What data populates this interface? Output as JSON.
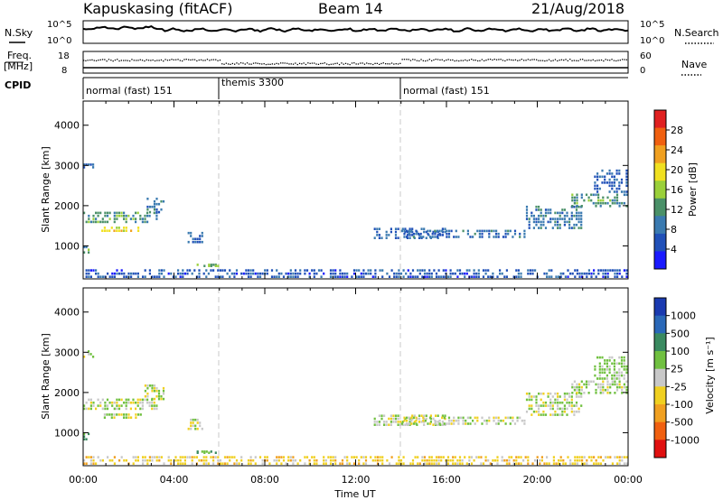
{
  "header": {
    "station": "Kapuskasing (fitACF)",
    "beam": "Beam 14",
    "date": "21/Aug/2018"
  },
  "summary": {
    "nsky_label": "N.Sky",
    "nsearch_label": "N.Search",
    "freq_label_1": "Freq.",
    "freq_label_2": "[MHz]",
    "nave_label": "Nave",
    "cpid_label": "CPID",
    "nsky_ticks": [
      "10^5",
      "10^0"
    ],
    "nsearch_ticks": [
      "10^5",
      "10^0"
    ],
    "freq_ticks": [
      "18",
      "8"
    ],
    "nave_ticks": [
      "60",
      "0"
    ],
    "cpid_segments": [
      {
        "label": "normal (fast) 151",
        "start_hour": 0,
        "end_hour": 6
      },
      {
        "label": "themis 3300",
        "start_hour": 6,
        "end_hour": 14
      },
      {
        "label": "normal (fast) 151",
        "start_hour": 14,
        "end_hour": 24
      }
    ]
  },
  "axes": {
    "x_label": "Time UT",
    "x_ticks": [
      "00:00",
      "04:00",
      "08:00",
      "12:00",
      "16:00",
      "20:00",
      "00:00"
    ],
    "y_label": "Slant Range [km]",
    "y_ticks": [
      "1000",
      "2000",
      "3000",
      "4000"
    ]
  },
  "colorbars": {
    "power": {
      "label": "Power [dB]",
      "ticks": [
        "4",
        "8",
        "12",
        "16",
        "20",
        "24",
        "28"
      ],
      "colors": [
        "#1a1aff",
        "#2050b8",
        "#3a7ab0",
        "#4a9068",
        "#9ad03a",
        "#f0e020",
        "#f0a020",
        "#f06010",
        "#e02020"
      ]
    },
    "velocity": {
      "label": "Velocity [m s⁻¹]",
      "ticks": [
        "1000",
        "500",
        "100",
        "25",
        "-25",
        "-100",
        "-500",
        "-1000"
      ],
      "colors": [
        "#1a3ab0",
        "#2a68b8",
        "#3a8a60",
        "#70c040",
        "#c8c8c8",
        "#f0d020",
        "#f0a020",
        "#f06010",
        "#e01010"
      ]
    }
  },
  "chart_data": {
    "type": "heatmap",
    "title": "Kapuskasing (fitACF)",
    "xlabel": "Time UT",
    "ylabel": "Slant Range [km]",
    "xlim": [
      0,
      24
    ],
    "ylim": [
      180,
      4600
    ],
    "series": [
      {
        "name": "Power [dB]",
        "clim": [
          0,
          32
        ]
      },
      {
        "name": "Velocity [m s⁻¹]",
        "clim": [
          -1200,
          1200
        ]
      }
    ],
    "regions": [
      {
        "t0": 0.0,
        "t1": 0.5,
        "r0": 2850,
        "r1": 3050,
        "power": 7,
        "velocity": 30
      },
      {
        "t0": 0.0,
        "t1": 3.3,
        "r0": 1550,
        "r1": 1850,
        "power": 12,
        "velocity": 5
      },
      {
        "t0": 0.8,
        "t1": 2.6,
        "r0": 1330,
        "r1": 1480,
        "power": 20,
        "velocity": 5
      },
      {
        "t0": 2.7,
        "t1": 3.6,
        "r0": 1800,
        "r1": 2200,
        "power": 9,
        "velocity": 10
      },
      {
        "t0": 0.0,
        "t1": 0.3,
        "r0": 800,
        "r1": 1000,
        "power": 12,
        "velocity": 150
      },
      {
        "t0": 4.6,
        "t1": 5.3,
        "r0": 1050,
        "r1": 1350,
        "power": 7,
        "velocity": 5
      },
      {
        "t0": 5.0,
        "t1": 6.0,
        "r0": 500,
        "r1": 560,
        "power": 15,
        "velocity": 120
      },
      {
        "t0": 12.8,
        "t1": 16.0,
        "r0": 1150,
        "r1": 1450,
        "power": 7,
        "velocity": 5
      },
      {
        "t0": 14.0,
        "t1": 19.5,
        "r0": 1180,
        "r1": 1400,
        "power": 8,
        "velocity": 5
      },
      {
        "t0": 19.5,
        "t1": 22.0,
        "r0": 1400,
        "r1": 2000,
        "power": 9,
        "velocity": 10
      },
      {
        "t0": 21.5,
        "t1": 24.0,
        "r0": 1950,
        "r1": 2300,
        "power": 12,
        "velocity": 20
      },
      {
        "t0": 22.5,
        "t1": 24.0,
        "r0": 2300,
        "r1": 2900,
        "power": 7,
        "velocity": 40
      },
      {
        "t0": 0.0,
        "t1": 24.0,
        "r0": 180,
        "r1": 420,
        "power": 6,
        "velocity": -60
      }
    ]
  }
}
